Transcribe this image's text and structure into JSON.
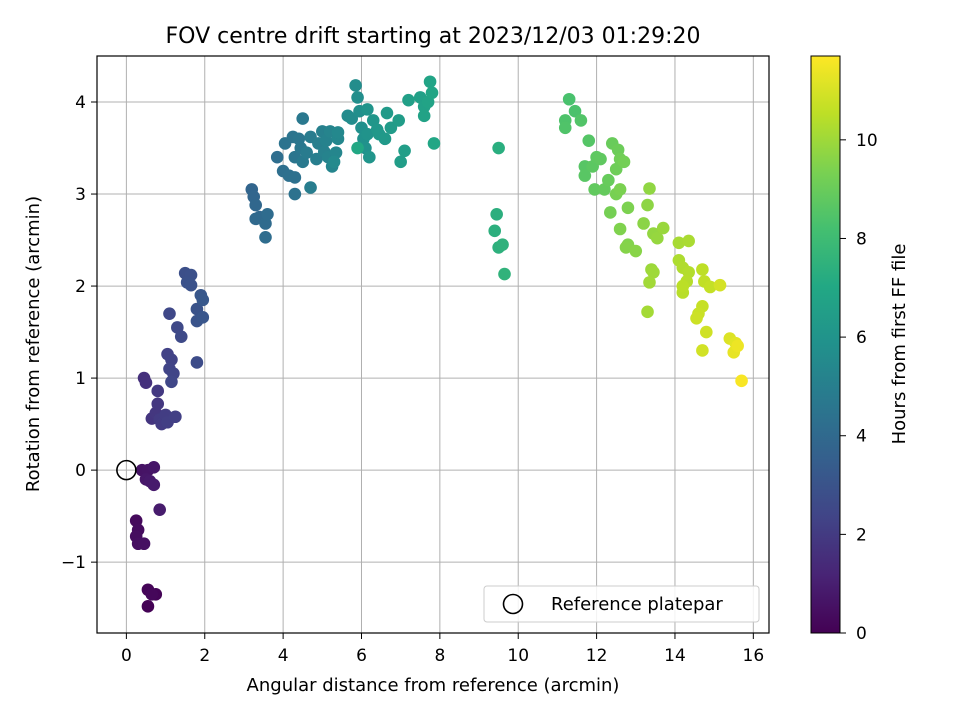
{
  "chart_data": {
    "type": "scatter",
    "title": "FOV centre drift starting at 2023/12/03 01:29:20",
    "xlabel": "Angular distance from reference (arcmin)",
    "ylabel": "Rotation from reference (arcmin)",
    "xlim": [
      -0.75,
      16.4
    ],
    "ylim": [
      -1.77,
      4.5
    ],
    "xticks": [
      0,
      2,
      4,
      6,
      8,
      10,
      12,
      14,
      16
    ],
    "yticks": [
      -1,
      0,
      1,
      2,
      3,
      4
    ],
    "ytick_labels": [
      "−1",
      "0",
      "1",
      "2",
      "3",
      "4"
    ],
    "grid": true,
    "colormap": "viridis",
    "colorbar": {
      "label": "Hours from first FF file",
      "range": [
        0,
        11.7
      ],
      "ticks": [
        0,
        2,
        4,
        6,
        8,
        10
      ]
    },
    "legend": {
      "location": "lower-right",
      "entries": [
        "Reference platepar"
      ]
    },
    "reference_point": {
      "x": 0,
      "y": 0,
      "label": "Reference platepar"
    },
    "series": [
      {
        "points": [
          [
            0.55,
            -1.48,
            0.05
          ],
          [
            0.75,
            -1.35,
            0.1
          ],
          [
            0.55,
            -1.3,
            0.15
          ],
          [
            0.65,
            -1.35,
            0.2
          ],
          [
            0.25,
            -0.55,
            0.3
          ],
          [
            0.3,
            -0.65,
            0.35
          ],
          [
            0.25,
            -0.72,
            0.4
          ],
          [
            0.3,
            -0.8,
            0.45
          ],
          [
            0.45,
            -0.8,
            0.5
          ],
          [
            0.4,
            0.0,
            0.6
          ],
          [
            0.55,
            0.0,
            0.65
          ],
          [
            0.7,
            0.03,
            0.7
          ],
          [
            0.5,
            -0.1,
            0.75
          ],
          [
            0.6,
            -0.12,
            0.8
          ],
          [
            0.7,
            -0.16,
            0.85
          ],
          [
            0.85,
            -0.43,
            0.9
          ],
          [
            0.45,
            1.0,
            1.6
          ],
          [
            0.5,
            0.95,
            1.65
          ],
          [
            0.65,
            0.56,
            1.8
          ],
          [
            0.75,
            0.62,
            1.85
          ],
          [
            0.8,
            0.72,
            1.9
          ],
          [
            0.8,
            0.86,
            1.95
          ],
          [
            0.85,
            0.55,
            2.0
          ],
          [
            0.9,
            0.5,
            2.05
          ],
          [
            1.0,
            0.6,
            2.1
          ],
          [
            1.05,
            0.52,
            2.15
          ],
          [
            1.25,
            0.58,
            2.2
          ],
          [
            1.05,
            1.26,
            2.25
          ],
          [
            1.15,
            1.2,
            2.3
          ],
          [
            1.1,
            1.1,
            2.35
          ],
          [
            1.2,
            1.05,
            2.4
          ],
          [
            1.15,
            0.96,
            2.45
          ],
          [
            1.1,
            1.7,
            2.5
          ],
          [
            1.3,
            1.55,
            2.55
          ],
          [
            1.4,
            1.45,
            2.6
          ],
          [
            1.8,
            1.17,
            2.7
          ],
          [
            1.5,
            2.14,
            2.8
          ],
          [
            1.65,
            2.12,
            2.85
          ],
          [
            1.55,
            2.04,
            2.9
          ],
          [
            1.65,
            2.01,
            2.95
          ],
          [
            1.8,
            1.75,
            3.0
          ],
          [
            1.8,
            1.62,
            3.05
          ],
          [
            1.95,
            1.66,
            3.1
          ],
          [
            1.9,
            1.9,
            3.15
          ],
          [
            1.95,
            1.85,
            3.2
          ],
          [
            3.2,
            3.05,
            3.8
          ],
          [
            3.25,
            2.97,
            3.85
          ],
          [
            3.3,
            2.88,
            3.9
          ],
          [
            3.4,
            2.75,
            3.95
          ],
          [
            3.3,
            2.73,
            4.0
          ],
          [
            3.55,
            2.68,
            4.05
          ],
          [
            3.6,
            2.78,
            4.1
          ],
          [
            3.55,
            2.53,
            4.15
          ],
          [
            3.85,
            3.4,
            4.2
          ],
          [
            4.0,
            3.25,
            4.25
          ],
          [
            4.15,
            3.2,
            4.3
          ],
          [
            4.3,
            3.18,
            4.35
          ],
          [
            4.3,
            3.0,
            4.4
          ],
          [
            4.05,
            3.55,
            4.45
          ],
          [
            4.25,
            3.62,
            4.5
          ],
          [
            4.3,
            3.4,
            4.55
          ],
          [
            4.4,
            3.6,
            4.6
          ],
          [
            4.45,
            3.5,
            4.65
          ],
          [
            4.5,
            3.82,
            4.7
          ],
          [
            4.5,
            3.35,
            4.75
          ],
          [
            4.6,
            3.45,
            4.8
          ],
          [
            4.7,
            3.62,
            4.85
          ],
          [
            4.7,
            3.07,
            4.9
          ],
          [
            4.85,
            3.38,
            4.95
          ],
          [
            4.9,
            3.55,
            5.0
          ],
          [
            5.0,
            3.68,
            5.05
          ],
          [
            5.05,
            3.46,
            5.1
          ],
          [
            5.1,
            3.58,
            5.15
          ],
          [
            5.15,
            3.4,
            5.2
          ],
          [
            5.2,
            3.68,
            5.25
          ],
          [
            5.25,
            3.3,
            5.3
          ],
          [
            5.35,
            3.45,
            5.35
          ],
          [
            5.4,
            3.6,
            5.4
          ],
          [
            5.4,
            3.67,
            5.45
          ],
          [
            5.3,
            3.35,
            5.5
          ],
          [
            5.65,
            3.85,
            5.55
          ],
          [
            5.75,
            3.82,
            5.6
          ],
          [
            5.85,
            4.18,
            5.65
          ],
          [
            5.9,
            4.05,
            5.7
          ],
          [
            5.95,
            3.9,
            5.75
          ],
          [
            6.0,
            3.72,
            5.8
          ],
          [
            6.05,
            3.6,
            5.85
          ],
          [
            6.1,
            3.5,
            5.9
          ],
          [
            6.15,
            3.65,
            5.95
          ],
          [
            6.15,
            3.92,
            6.0
          ],
          [
            6.2,
            3.4,
            6.05
          ],
          [
            6.3,
            3.8,
            6.1
          ],
          [
            6.4,
            3.7,
            6.15
          ],
          [
            6.45,
            3.65,
            6.2
          ],
          [
            6.6,
            3.6,
            6.25
          ],
          [
            6.65,
            3.88,
            6.3
          ],
          [
            6.75,
            3.72,
            6.35
          ],
          [
            6.95,
            3.8,
            6.4
          ],
          [
            7.0,
            3.35,
            6.45
          ],
          [
            7.1,
            3.47,
            6.5
          ],
          [
            7.2,
            4.02,
            6.55
          ],
          [
            7.5,
            4.05,
            6.6
          ],
          [
            7.6,
            3.95,
            6.65
          ],
          [
            7.6,
            3.85,
            6.7
          ],
          [
            7.7,
            4.0,
            6.75
          ],
          [
            7.75,
            4.22,
            6.8
          ],
          [
            7.8,
            4.1,
            6.85
          ],
          [
            7.85,
            3.55,
            6.9
          ],
          [
            5.9,
            3.5,
            6.95
          ],
          [
            9.5,
            3.5,
            7.3
          ],
          [
            9.45,
            2.78,
            7.35
          ],
          [
            9.4,
            2.6,
            7.4
          ],
          [
            9.5,
            2.42,
            7.45
          ],
          [
            9.6,
            2.45,
            7.5
          ],
          [
            9.65,
            2.13,
            7.55
          ],
          [
            11.3,
            4.03,
            8.3
          ],
          [
            11.45,
            3.9,
            8.35
          ],
          [
            11.2,
            3.8,
            8.4
          ],
          [
            11.2,
            3.72,
            8.45
          ],
          [
            11.6,
            3.8,
            8.5
          ],
          [
            11.8,
            3.58,
            8.55
          ],
          [
            11.7,
            3.3,
            8.6
          ],
          [
            11.7,
            3.2,
            8.65
          ],
          [
            11.9,
            3.3,
            8.7
          ],
          [
            12.0,
            3.4,
            8.75
          ],
          [
            12.1,
            3.38,
            8.8
          ],
          [
            11.95,
            3.05,
            8.85
          ],
          [
            12.2,
            3.05,
            8.9
          ],
          [
            12.3,
            3.15,
            8.95
          ],
          [
            12.4,
            3.55,
            9.0
          ],
          [
            12.55,
            3.48,
            9.05
          ],
          [
            12.5,
            3.27,
            9.1
          ],
          [
            12.6,
            3.38,
            9.15
          ],
          [
            12.7,
            3.35,
            9.2
          ],
          [
            12.35,
            2.8,
            9.25
          ],
          [
            12.5,
            3.0,
            9.3
          ],
          [
            12.6,
            3.05,
            9.35
          ],
          [
            12.8,
            2.85,
            9.4
          ],
          [
            12.6,
            2.62,
            9.45
          ],
          [
            12.8,
            2.45,
            9.5
          ],
          [
            12.75,
            2.42,
            9.55
          ],
          [
            13.0,
            2.38,
            9.6
          ],
          [
            13.2,
            2.68,
            9.65
          ],
          [
            13.3,
            2.88,
            9.7
          ],
          [
            13.35,
            3.06,
            9.75
          ],
          [
            13.45,
            2.57,
            9.8
          ],
          [
            13.55,
            2.52,
            9.85
          ],
          [
            13.7,
            2.63,
            9.9
          ],
          [
            13.4,
            2.18,
            9.95
          ],
          [
            13.45,
            2.15,
            10.0
          ],
          [
            13.35,
            2.04,
            10.05
          ],
          [
            13.3,
            1.72,
            10.1
          ],
          [
            14.1,
            2.47,
            10.15
          ],
          [
            14.35,
            2.49,
            10.2
          ],
          [
            14.1,
            2.28,
            10.25
          ],
          [
            14.2,
            2.2,
            10.3
          ],
          [
            14.35,
            2.15,
            10.35
          ],
          [
            14.3,
            2.05,
            10.4
          ],
          [
            14.2,
            1.93,
            10.45
          ],
          [
            14.2,
            2.0,
            10.5
          ],
          [
            14.7,
            2.18,
            10.55
          ],
          [
            14.75,
            2.05,
            10.6
          ],
          [
            14.9,
            1.99,
            10.65
          ],
          [
            14.7,
            1.78,
            10.7
          ],
          [
            14.6,
            1.7,
            10.75
          ],
          [
            14.55,
            1.65,
            10.8
          ],
          [
            14.8,
            1.5,
            10.85
          ],
          [
            14.7,
            1.3,
            10.9
          ],
          [
            15.15,
            2.01,
            10.95
          ],
          [
            15.4,
            1.43,
            11.1
          ],
          [
            15.55,
            1.38,
            11.2
          ],
          [
            15.5,
            1.28,
            11.3
          ],
          [
            15.6,
            1.35,
            11.4
          ],
          [
            15.7,
            0.97,
            11.6
          ]
        ]
      }
    ]
  }
}
